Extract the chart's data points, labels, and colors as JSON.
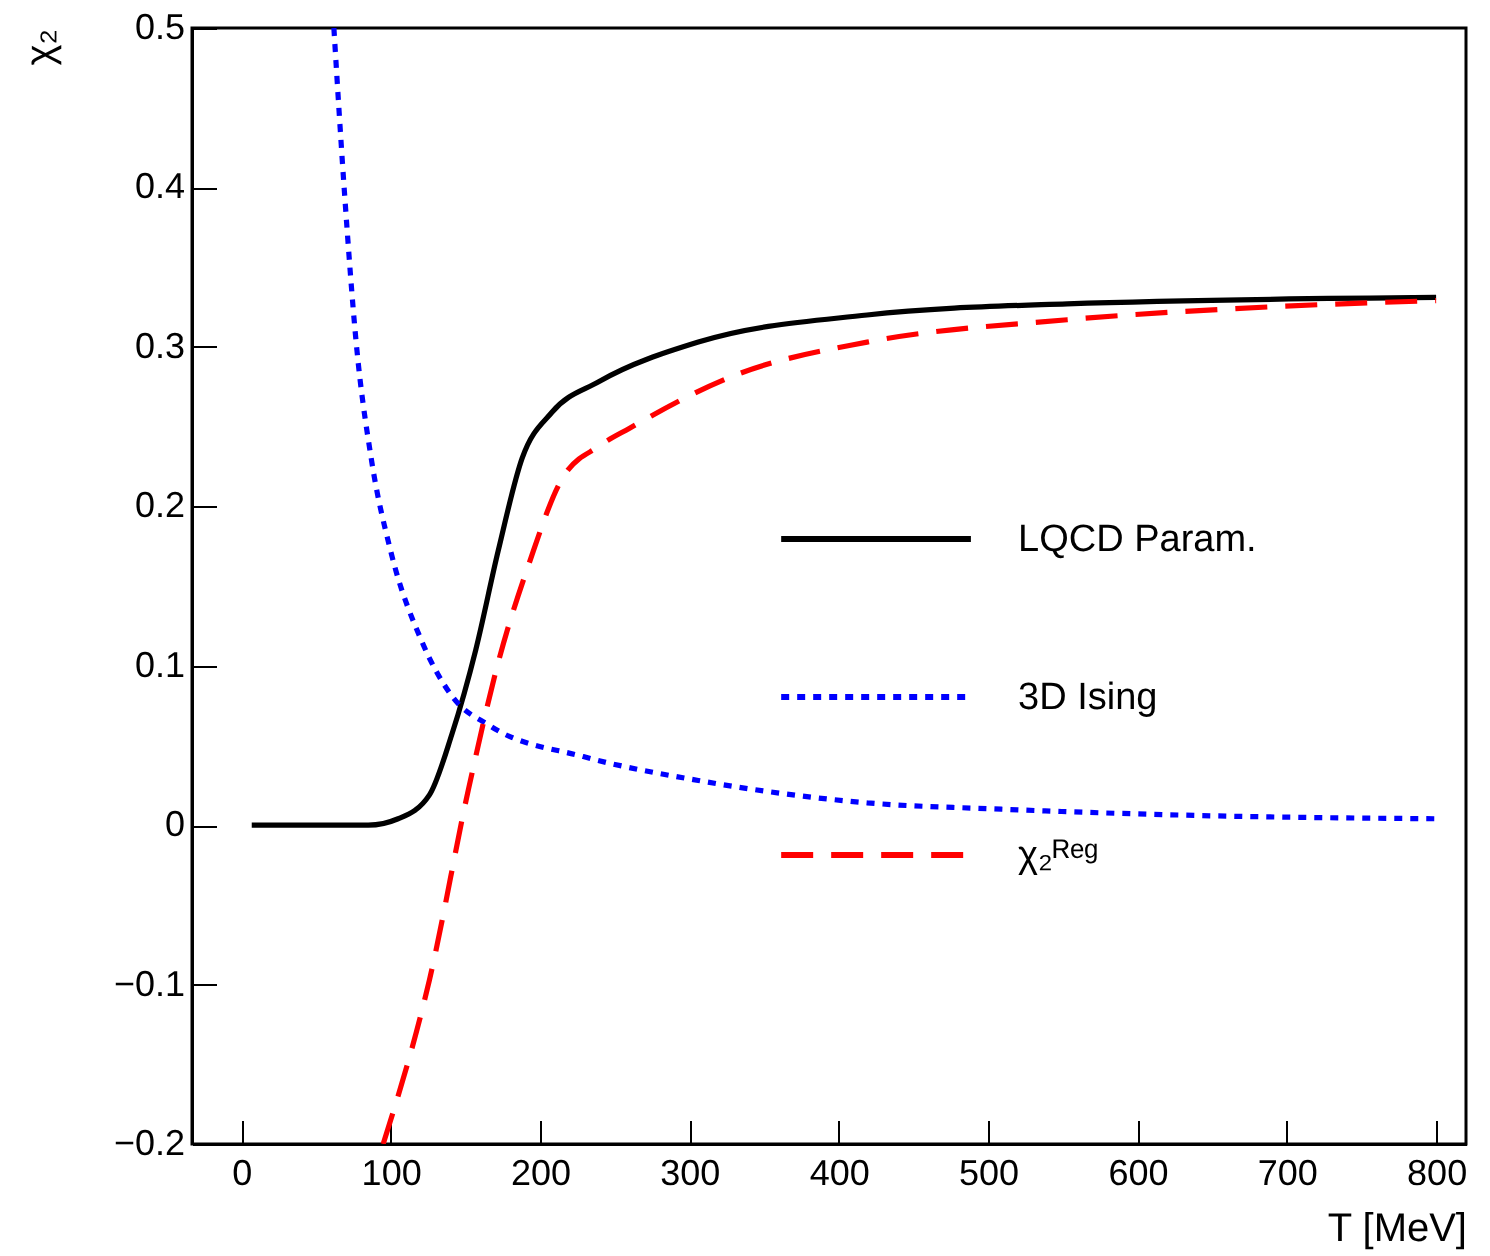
{
  "chart_data": {
    "type": "line",
    "xlabel": "T [MeV]",
    "ylabel": "χ₂",
    "xlim": [
      -33,
      820
    ],
    "ylim": [
      -0.2,
      0.5
    ],
    "xticks": [
      0,
      100,
      200,
      300,
      400,
      500,
      600,
      700,
      800
    ],
    "yticks": [
      -0.2,
      -0.1,
      0,
      0.1,
      0.2,
      0.3,
      0.4,
      0.5
    ],
    "grid": false,
    "legend": "right",
    "series": [
      {
        "name": "LQCD Param.",
        "color": "#000000",
        "line_style": "solid",
        "x": [
          7,
          50,
          85,
          105,
          126,
          141,
          157,
          172,
          188,
          208,
          239,
          306,
          419,
          553,
          800
        ],
        "values": [
          0,
          0,
          0,
          0.004,
          0.019,
          0.057,
          0.11,
          0.172,
          0.23,
          0.259,
          0.278,
          0.303,
          0.32,
          0.327,
          0.331
        ]
      },
      {
        "name": "3D Ising",
        "color": "#0000ff",
        "line_style": "dotted",
        "x": [
          62,
          69,
          77,
          87,
          100,
          121,
          141,
          167,
          229,
          306,
          419,
          509,
          643,
          800
        ],
        "values": [
          0.5,
          0.398,
          0.302,
          0.23,
          0.172,
          0.115,
          0.081,
          0.062,
          0.043,
          0.028,
          0.014,
          0.01,
          0.006,
          0.004
        ]
      },
      {
        "name": "χ₂ᴿᵉᵍ",
        "color": "#ff0000",
        "line_style": "dashed",
        "x": [
          95,
          126,
          152,
          172,
          193,
          214,
          240,
          260,
          330,
          419,
          553,
          687,
          800
        ],
        "values": [
          -0.2,
          -0.097,
          0.022,
          0.102,
          0.165,
          0.216,
          0.238,
          0.249,
          0.282,
          0.303,
          0.317,
          0.325,
          0.329
        ]
      }
    ]
  }
}
